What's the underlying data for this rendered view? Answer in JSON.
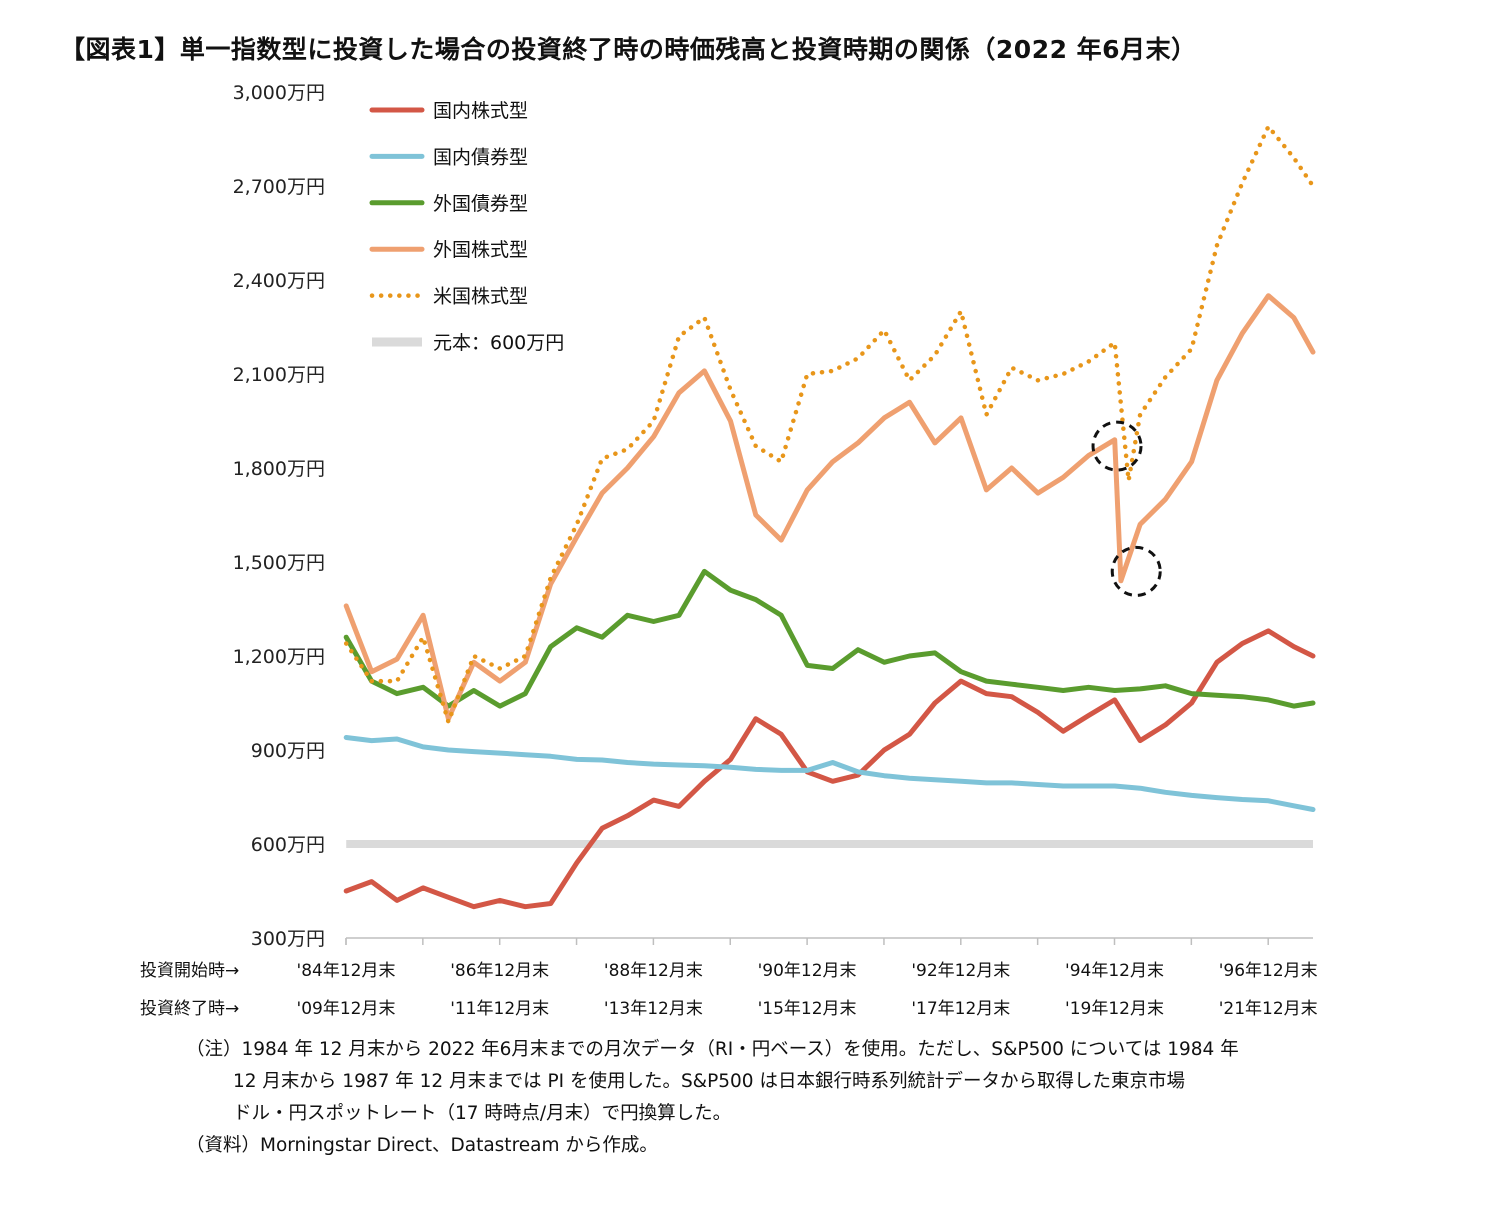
{
  "title": "【図表1】単一指数型に投資した場合の投資終了時の時価残高と投資時期の関係（2022 年6月末）",
  "chart_data": {
    "type": "line",
    "yunit": "万円",
    "ylim": [
      300,
      3000
    ],
    "yticks": [
      "3,000万円",
      "2,700万円",
      "2,400万円",
      "2,100万円",
      "1,800万円",
      "1,500万円",
      "1,200万円",
      "900万円",
      "600万円",
      "300万円"
    ],
    "ytick_values": [
      3000,
      2700,
      2400,
      2100,
      1800,
      1500,
      1200,
      900,
      600,
      300
    ],
    "xlim": [
      1984.917,
      1997.5
    ],
    "x_row_labels": [
      "投資開始時→",
      "投資終了時→"
    ],
    "x_start_labels": [
      "'84年12月末",
      "'86年12月末",
      "'88年12月末",
      "'90年12月末",
      "'92年12月末",
      "'94年12月末",
      "'96年12月末"
    ],
    "x_end_labels": [
      "'09年12月末",
      "'11年12月末",
      "'13年12月末",
      "'15年12月末",
      "'17年12月末",
      "'19年12月末",
      "'21年12月末"
    ],
    "x_label_positions": [
      1984.917,
      1986.917,
      1988.917,
      1990.917,
      1992.917,
      1994.917,
      1996.917
    ],
    "legend_position": "top-left",
    "grid": false,
    "series": [
      {
        "name": "国内株式型",
        "color": "#D35746",
        "style": "solid",
        "x": [
          1984.92,
          1985.25,
          1985.58,
          1985.92,
          1986.25,
          1986.58,
          1986.92,
          1987.25,
          1987.58,
          1987.92,
          1988.25,
          1988.58,
          1988.92,
          1989.25,
          1989.58,
          1989.92,
          1990.25,
          1990.58,
          1990.92,
          1991.25,
          1991.58,
          1991.92,
          1992.25,
          1992.58,
          1992.92,
          1993.25,
          1993.58,
          1993.92,
          1994.25,
          1994.58,
          1994.92,
          1995.25,
          1995.58,
          1995.92,
          1996.25,
          1996.58,
          1996.92,
          1997.25,
          1997.5
        ],
        "y": [
          450,
          480,
          420,
          460,
          430,
          400,
          420,
          400,
          410,
          540,
          650,
          690,
          740,
          720,
          800,
          870,
          1000,
          950,
          830,
          800,
          820,
          900,
          950,
          1050,
          1120,
          1080,
          1070,
          1020,
          960,
          1010,
          1060,
          930,
          980,
          1050,
          1180,
          1240,
          1280,
          1230,
          1200
        ]
      },
      {
        "name": "国内債券型",
        "color": "#7FC3D8",
        "style": "solid",
        "x": [
          1984.92,
          1985.25,
          1985.58,
          1985.92,
          1986.25,
          1986.58,
          1986.92,
          1987.25,
          1987.58,
          1987.92,
          1988.25,
          1988.58,
          1988.92,
          1989.25,
          1989.58,
          1989.92,
          1990.25,
          1990.58,
          1990.92,
          1991.25,
          1991.58,
          1991.92,
          1992.25,
          1992.58,
          1992.92,
          1993.25,
          1993.58,
          1993.92,
          1994.25,
          1994.58,
          1994.92,
          1995.25,
          1995.58,
          1995.92,
          1996.25,
          1996.58,
          1996.92,
          1997.25,
          1997.5
        ],
        "y": [
          940,
          930,
          935,
          910,
          900,
          895,
          890,
          885,
          880,
          870,
          868,
          860,
          855,
          852,
          850,
          845,
          838,
          835,
          835,
          860,
          830,
          818,
          810,
          805,
          800,
          795,
          795,
          790,
          785,
          785,
          785,
          778,
          765,
          755,
          748,
          742,
          738,
          722,
          710
        ]
      },
      {
        "name": "外国債券型",
        "color": "#5A9C2E",
        "style": "solid",
        "x": [
          1984.92,
          1985.25,
          1985.58,
          1985.92,
          1986.25,
          1986.58,
          1986.92,
          1987.25,
          1987.58,
          1987.92,
          1988.25,
          1988.58,
          1988.92,
          1989.25,
          1989.58,
          1989.92,
          1990.25,
          1990.58,
          1990.92,
          1991.25,
          1991.58,
          1991.92,
          1992.25,
          1992.58,
          1992.92,
          1993.25,
          1993.58,
          1993.92,
          1994.25,
          1994.58,
          1994.92,
          1995.25,
          1995.58,
          1995.92,
          1996.25,
          1996.58,
          1996.92,
          1997.25,
          1997.5
        ],
        "y": [
          1260,
          1120,
          1080,
          1100,
          1040,
          1090,
          1040,
          1080,
          1230,
          1290,
          1260,
          1330,
          1310,
          1330,
          1470,
          1410,
          1380,
          1330,
          1170,
          1160,
          1220,
          1180,
          1200,
          1210,
          1150,
          1120,
          1110,
          1100,
          1090,
          1100,
          1090,
          1095,
          1105,
          1080,
          1075,
          1070,
          1060,
          1040,
          1050
        ]
      },
      {
        "name": "外国株式型",
        "color": "#EFA070",
        "style": "solid",
        "x": [
          1984.92,
          1985.25,
          1985.58,
          1985.92,
          1986.25,
          1986.58,
          1986.92,
          1987.25,
          1987.58,
          1987.92,
          1988.25,
          1988.58,
          1988.92,
          1989.25,
          1989.58,
          1989.92,
          1990.25,
          1990.58,
          1990.92,
          1991.25,
          1991.58,
          1991.92,
          1992.25,
          1992.58,
          1992.92,
          1993.25,
          1993.58,
          1993.92,
          1994.25,
          1994.58,
          1994.92,
          1995.0,
          1995.25,
          1995.58,
          1995.92,
          1996.25,
          1996.58,
          1996.92,
          1997.25,
          1997.5
        ],
        "y": [
          1360,
          1150,
          1190,
          1330,
          1000,
          1180,
          1120,
          1180,
          1430,
          1580,
          1720,
          1800,
          1900,
          2040,
          2110,
          1950,
          1650,
          1570,
          1730,
          1820,
          1880,
          1960,
          2010,
          1880,
          1960,
          1730,
          1800,
          1720,
          1770,
          1840,
          1890,
          1440,
          1620,
          1700,
          1820,
          2080,
          2230,
          2350,
          2280,
          2170
        ]
      },
      {
        "name": "米国株式型",
        "color": "#E8961A",
        "style": "dotted",
        "x": [
          1984.92,
          1985.25,
          1985.58,
          1985.92,
          1986.25,
          1986.58,
          1986.92,
          1987.25,
          1987.58,
          1987.92,
          1988.25,
          1988.58,
          1988.92,
          1989.25,
          1989.58,
          1989.92,
          1990.25,
          1990.58,
          1990.92,
          1991.25,
          1991.58,
          1991.92,
          1992.25,
          1992.58,
          1992.92,
          1993.25,
          1993.58,
          1993.92,
          1994.25,
          1994.58,
          1994.92,
          1995.1,
          1995.25,
          1995.58,
          1995.92,
          1996.25,
          1996.58,
          1996.92,
          1997.25,
          1997.5
        ],
        "y": [
          1240,
          1120,
          1120,
          1260,
          990,
          1200,
          1160,
          1200,
          1450,
          1620,
          1830,
          1860,
          1950,
          2220,
          2280,
          2050,
          1870,
          1820,
          2100,
          2110,
          2150,
          2240,
          2080,
          2160,
          2300,
          1970,
          2120,
          2080,
          2100,
          2140,
          2200,
          1760,
          1970,
          2090,
          2180,
          2510,
          2710,
          2890,
          2790,
          2700
        ]
      },
      {
        "name": "元本：600万円",
        "color": "#DADADA",
        "style": "baseline",
        "x": [
          1984.92,
          1997.5
        ],
        "y": [
          600,
          600
        ]
      }
    ],
    "annotations": [
      {
        "type": "dashed-circle",
        "x": 1994.95,
        "y": 1870
      },
      {
        "type": "dashed-circle",
        "x": 1995.2,
        "y": 1470
      }
    ]
  },
  "notes": [
    "（注）1984 年 12 月末から 2022 年6月末までの月次データ（RI・円ベース）を使用。ただし、S&P500 については 1984 年",
    "12 月末から 1987 年 12 月末までは PI を使用した。S&P500 は日本銀行時系列統計データから取得した東京市場",
    "ドル・円スポットレート（17 時時点/月末）で円換算した。",
    "（資料）Morningstar Direct、Datastream から作成。"
  ]
}
